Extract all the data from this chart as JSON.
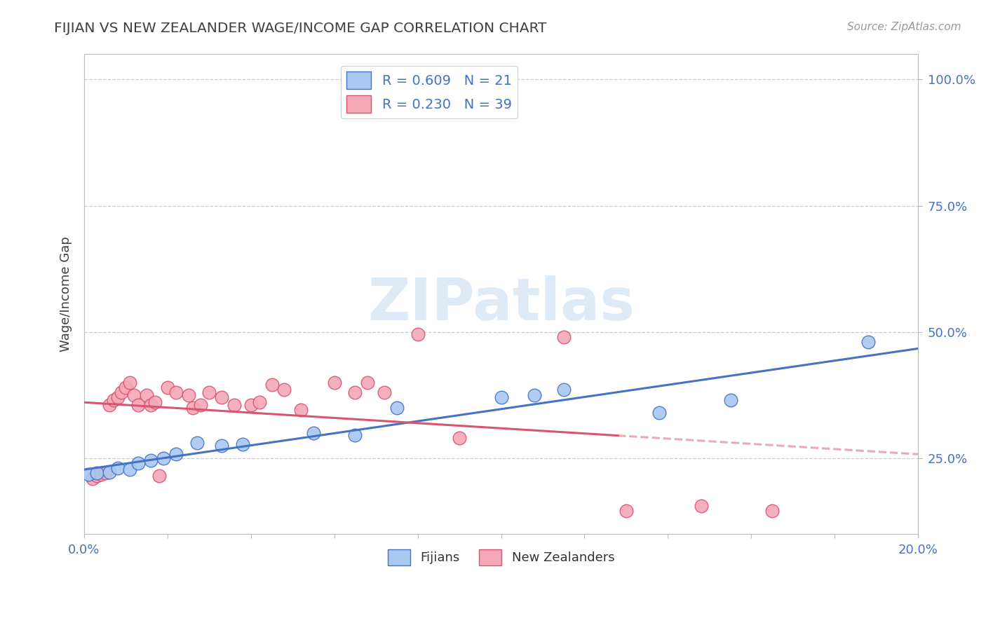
{
  "title": "FIJIAN VS NEW ZEALANDER WAGE/INCOME GAP CORRELATION CHART",
  "source": "Source: ZipAtlas.com",
  "ylabel": "Wage/Income Gap",
  "xlim": [
    0.0,
    0.2
  ],
  "ylim": [
    0.1,
    1.05
  ],
  "xticks": [
    0.0,
    0.02,
    0.04,
    0.06,
    0.08,
    0.1,
    0.12,
    0.14,
    0.16,
    0.18,
    0.2
  ],
  "xtick_labels": [
    "0.0%",
    "",
    "",
    "",
    "",
    "",
    "",
    "",
    "",
    "",
    "20.0%"
  ],
  "ytick_positions": [
    0.25,
    0.5,
    0.75,
    1.0
  ],
  "ytick_labels": [
    "25.0%",
    "50.0%",
    "75.0%",
    "100.0%"
  ],
  "fijian_color": "#A8C8F0",
  "nz_color": "#F4A8B8",
  "fijian_R": 0.609,
  "fijian_N": 21,
  "nz_R": 0.23,
  "nz_N": 39,
  "fijian_line_color": "#4472C4",
  "nz_line_color": "#D9546E",
  "grid_color": "#CCCCCC",
  "background_color": "#FFFFFF",
  "title_color": "#404040",
  "watermark_color": "#C8DCF0",
  "fijians_x": [
    0.001,
    0.003,
    0.006,
    0.008,
    0.011,
    0.013,
    0.016,
    0.019,
    0.022,
    0.027,
    0.033,
    0.038,
    0.055,
    0.065,
    0.075,
    0.1,
    0.108,
    0.115,
    0.138,
    0.155,
    0.188
  ],
  "fijians_y": [
    0.218,
    0.22,
    0.222,
    0.23,
    0.228,
    0.24,
    0.245,
    0.25,
    0.258,
    0.28,
    0.275,
    0.278,
    0.3,
    0.295,
    0.35,
    0.37,
    0.375,
    0.385,
    0.34,
    0.365,
    0.48
  ],
  "nz_x": [
    0.002,
    0.003,
    0.004,
    0.005,
    0.006,
    0.007,
    0.008,
    0.009,
    0.01,
    0.011,
    0.012,
    0.013,
    0.015,
    0.016,
    0.017,
    0.018,
    0.02,
    0.022,
    0.025,
    0.026,
    0.028,
    0.03,
    0.033,
    0.036,
    0.04,
    0.042,
    0.045,
    0.048,
    0.052,
    0.06,
    0.065,
    0.068,
    0.072,
    0.08,
    0.09,
    0.115,
    0.13,
    0.148,
    0.165
  ],
  "nz_y": [
    0.21,
    0.215,
    0.218,
    0.22,
    0.355,
    0.365,
    0.37,
    0.38,
    0.39,
    0.4,
    0.375,
    0.355,
    0.375,
    0.355,
    0.36,
    0.215,
    0.39,
    0.38,
    0.375,
    0.35,
    0.355,
    0.38,
    0.37,
    0.355,
    0.355,
    0.36,
    0.395,
    0.385,
    0.345,
    0.4,
    0.38,
    0.4,
    0.38,
    0.495,
    0.29,
    0.49,
    0.145,
    0.155,
    0.145
  ],
  "nz_line_end_solid": 0.128,
  "nz_line_end_dashed": 0.2
}
